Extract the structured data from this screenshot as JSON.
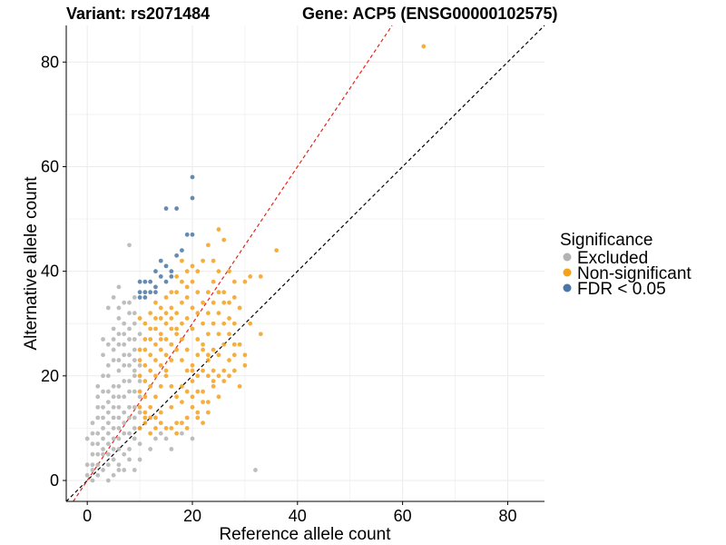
{
  "chart_data": {
    "type": "scatter",
    "title_left": "Variant: rs2071484",
    "title_right": "Gene: ACP5 (ENSG00000102575)",
    "xlabel": "Reference allele count",
    "ylabel": "Alternative allele count",
    "xlim": [
      -4,
      87
    ],
    "ylim": [
      -4,
      87
    ],
    "x_ticks": [
      0,
      20,
      40,
      60,
      80
    ],
    "y_ticks": [
      0,
      20,
      40,
      60,
      80
    ],
    "grid": true,
    "legend": {
      "title": "Significance",
      "position": "right",
      "entries": [
        {
          "key": "excluded",
          "label": "Excluded",
          "color": "#b3b3b3"
        },
        {
          "key": "nonsig",
          "label": "Non-significant",
          "color": "#f5a11c"
        },
        {
          "key": "fdr",
          "label": "FDR < 0.05",
          "color": "#4a77a6"
        }
      ]
    },
    "reference_lines": [
      {
        "name": "identity",
        "slope": 1.0,
        "intercept": 0,
        "color": "#000000",
        "style": "dashed"
      },
      {
        "name": "expected-ratio",
        "slope": 1.5,
        "intercept": 0,
        "color": "#e8231a",
        "style": "dashed"
      }
    ],
    "series": [
      {
        "name": "Excluded",
        "color": "#b3b3b3",
        "points": [
          [
            0,
            1
          ],
          [
            1,
            0
          ],
          [
            1,
            2
          ],
          [
            2,
            1
          ],
          [
            2,
            3
          ],
          [
            1,
            3
          ],
          [
            3,
            2
          ],
          [
            4,
            0
          ],
          [
            3,
            5
          ],
          [
            4,
            3
          ],
          [
            2,
            5
          ],
          [
            0,
            3
          ],
          [
            5,
            1
          ],
          [
            1,
            5
          ],
          [
            5,
            6
          ],
          [
            6,
            2
          ],
          [
            3,
            8
          ],
          [
            7,
            5
          ],
          [
            6,
            8
          ],
          [
            5,
            10
          ],
          [
            8,
            4
          ],
          [
            4,
            11
          ],
          [
            9,
            2
          ],
          [
            3,
            12
          ],
          [
            6,
            12
          ],
          [
            7,
            13
          ],
          [
            5,
            14
          ],
          [
            8,
            12
          ],
          [
            4,
            15
          ],
          [
            9,
            14
          ],
          [
            6,
            16
          ],
          [
            8,
            17
          ],
          [
            5,
            18
          ],
          [
            7,
            19
          ],
          [
            4,
            20
          ],
          [
            9,
            20
          ],
          [
            6,
            21
          ],
          [
            8,
            22
          ],
          [
            5,
            23
          ],
          [
            7,
            24
          ],
          [
            9,
            25
          ],
          [
            6,
            26
          ],
          [
            8,
            27
          ],
          [
            7,
            28
          ],
          [
            5,
            29
          ],
          [
            9,
            30
          ],
          [
            6,
            31
          ],
          [
            8,
            32
          ],
          [
            4,
            33
          ],
          [
            7,
            34
          ],
          [
            5,
            35
          ],
          [
            6,
            37
          ],
          [
            8,
            45
          ],
          [
            9,
            35
          ],
          [
            3,
            17
          ],
          [
            2,
            14
          ],
          [
            1,
            11
          ],
          [
            2,
            9
          ],
          [
            0,
            8
          ],
          [
            1,
            7
          ],
          [
            3,
            10
          ],
          [
            4,
            7
          ],
          [
            5,
            4
          ],
          [
            6,
            3
          ],
          [
            7,
            2
          ],
          [
            8,
            6
          ],
          [
            9,
            8
          ],
          [
            9,
            10
          ],
          [
            3,
            14
          ],
          [
            2,
            12
          ],
          [
            4,
            9
          ],
          [
            5,
            8
          ],
          [
            6,
            10
          ],
          [
            7,
            9
          ],
          [
            8,
            9
          ],
          [
            9,
            12
          ],
          [
            4,
            13
          ],
          [
            3,
            20
          ],
          [
            2,
            16
          ],
          [
            5,
            16
          ],
          [
            6,
            18
          ],
          [
            7,
            16
          ],
          [
            8,
            14
          ],
          [
            9,
            17
          ],
          [
            4,
            22
          ],
          [
            5,
            25
          ],
          [
            6,
            23
          ],
          [
            7,
            22
          ],
          [
            8,
            24
          ],
          [
            9,
            23
          ],
          [
            5,
            27
          ],
          [
            6,
            28
          ],
          [
            7,
            30
          ],
          [
            8,
            29
          ],
          [
            9,
            27
          ],
          [
            3,
            6
          ],
          [
            2,
            7
          ],
          [
            1,
            9
          ],
          [
            4,
            5
          ],
          [
            6,
            6
          ],
          [
            10,
            4
          ],
          [
            10,
            7
          ],
          [
            10,
            10
          ],
          [
            10,
            13
          ],
          [
            10,
            16
          ],
          [
            10,
            19
          ],
          [
            10,
            22
          ],
          [
            12,
            6
          ],
          [
            13,
            8
          ],
          [
            14,
            9
          ],
          [
            15,
            8
          ],
          [
            16,
            6
          ],
          [
            18,
            9
          ],
          [
            20,
            8
          ],
          [
            32,
            2
          ],
          [
            3,
            24
          ],
          [
            4,
            26
          ],
          [
            2,
            18
          ],
          [
            4,
            17
          ],
          [
            5,
            12
          ],
          [
            6,
            14
          ],
          [
            7,
            11
          ],
          [
            8,
            19
          ],
          [
            9,
            21
          ],
          [
            7,
            26
          ],
          [
            6,
            33
          ],
          [
            8,
            34
          ],
          [
            9,
            32
          ],
          [
            10,
            28
          ],
          [
            3,
            27
          ]
        ]
      },
      {
        "name": "Non-significant",
        "color": "#f5a11c",
        "points": [
          [
            10,
            10
          ],
          [
            11,
            11
          ],
          [
            12,
            9
          ],
          [
            13,
            12
          ],
          [
            14,
            13
          ],
          [
            15,
            10
          ],
          [
            16,
            14
          ],
          [
            17,
            11
          ],
          [
            18,
            15
          ],
          [
            19,
            12
          ],
          [
            20,
            16
          ],
          [
            21,
            13
          ],
          [
            22,
            17
          ],
          [
            23,
            15
          ],
          [
            24,
            18
          ],
          [
            25,
            16
          ],
          [
            26,
            19
          ],
          [
            27,
            20
          ],
          [
            28,
            21
          ],
          [
            29,
            18
          ],
          [
            30,
            22
          ],
          [
            10,
            14
          ],
          [
            11,
            16
          ],
          [
            12,
            18
          ],
          [
            13,
            20
          ],
          [
            14,
            22
          ],
          [
            15,
            24
          ],
          [
            16,
            26
          ],
          [
            17,
            28
          ],
          [
            18,
            30
          ],
          [
            19,
            31
          ],
          [
            20,
            29
          ],
          [
            21,
            27
          ],
          [
            22,
            25
          ],
          [
            23,
            23
          ],
          [
            24,
            21
          ],
          [
            10,
            20
          ],
          [
            11,
            22
          ],
          [
            12,
            24
          ],
          [
            13,
            26
          ],
          [
            14,
            28
          ],
          [
            15,
            30
          ],
          [
            16,
            31
          ],
          [
            17,
            25
          ],
          [
            18,
            23
          ],
          [
            19,
            21
          ],
          [
            20,
            19
          ],
          [
            21,
            17
          ],
          [
            22,
            15
          ],
          [
            23,
            13
          ],
          [
            10,
            25
          ],
          [
            11,
            27
          ],
          [
            12,
            29
          ],
          [
            13,
            31
          ],
          [
            14,
            27
          ],
          [
            15,
            20
          ],
          [
            16,
            18
          ],
          [
            17,
            16
          ],
          [
            18,
            18
          ],
          [
            19,
            17
          ],
          [
            20,
            22
          ],
          [
            21,
            24
          ],
          [
            22,
            26
          ],
          [
            23,
            28
          ],
          [
            24,
            30
          ],
          [
            25,
            32
          ],
          [
            26,
            34
          ],
          [
            27,
            31
          ],
          [
            28,
            35
          ],
          [
            29,
            33
          ],
          [
            30,
            38
          ],
          [
            31,
            39
          ],
          [
            33,
            39
          ],
          [
            36,
            44
          ],
          [
            33,
            28
          ],
          [
            28,
            38
          ],
          [
            25,
            40
          ],
          [
            24,
            42
          ],
          [
            26,
            46
          ],
          [
            25,
            48
          ],
          [
            23,
            45
          ],
          [
            22,
            42
          ],
          [
            21,
            40
          ],
          [
            20,
            41
          ],
          [
            19,
            37
          ],
          [
            18,
            38
          ],
          [
            17,
            39
          ],
          [
            16,
            36
          ],
          [
            15,
            35
          ],
          [
            14,
            33
          ],
          [
            13,
            34
          ],
          [
            12,
            32
          ],
          [
            11,
            30
          ],
          [
            10,
            31
          ],
          [
            64,
            83
          ],
          [
            27,
            23
          ],
          [
            26,
            21
          ],
          [
            25,
            20
          ],
          [
            24,
            19
          ],
          [
            23,
            24
          ],
          [
            22,
            21
          ],
          [
            21,
            20
          ],
          [
            20,
            21
          ],
          [
            19,
            25
          ],
          [
            18,
            27
          ],
          [
            17,
            29
          ],
          [
            16,
            23
          ],
          [
            15,
            21
          ],
          [
            14,
            18
          ],
          [
            13,
            16
          ],
          [
            12,
            14
          ],
          [
            11,
            13
          ],
          [
            10,
            17
          ],
          [
            11,
            19
          ],
          [
            12,
            21
          ],
          [
            13,
            23
          ],
          [
            14,
            25
          ],
          [
            15,
            27
          ],
          [
            16,
            29
          ],
          [
            17,
            32
          ],
          [
            18,
            34
          ],
          [
            19,
            35
          ],
          [
            20,
            33
          ],
          [
            21,
            32
          ],
          [
            22,
            34
          ],
          [
            23,
            36
          ],
          [
            24,
            38
          ],
          [
            26,
            36
          ],
          [
            27,
            40
          ],
          [
            28,
            26
          ],
          [
            29,
            26
          ],
          [
            20,
            14
          ],
          [
            21,
            12
          ],
          [
            22,
            11
          ],
          [
            19,
            10
          ],
          [
            18,
            11
          ],
          [
            17,
            9
          ],
          [
            16,
            10
          ],
          [
            14,
            11
          ],
          [
            13,
            10
          ],
          [
            12,
            12
          ],
          [
            11,
            12
          ],
          [
            25,
            24
          ],
          [
            26,
            26
          ],
          [
            27,
            28
          ],
          [
            28,
            30
          ],
          [
            22,
            30
          ],
          [
            23,
            32
          ],
          [
            21,
            36
          ],
          [
            20,
            38
          ],
          [
            19,
            40
          ],
          [
            18,
            42
          ],
          [
            17,
            36
          ],
          [
            16,
            33
          ],
          [
            15,
            32
          ],
          [
            14,
            31
          ],
          [
            13,
            29
          ],
          [
            12,
            27
          ],
          [
            11,
            25
          ],
          [
            10,
            23
          ],
          [
            25,
            36
          ],
          [
            24,
            34
          ],
          [
            23,
            20
          ],
          [
            24,
            25
          ],
          [
            25,
            28
          ],
          [
            26,
            30
          ],
          [
            27,
            34
          ],
          [
            28,
            24
          ],
          [
            30,
            24
          ],
          [
            31,
            30
          ]
        ]
      },
      {
        "name": "FDR < 0.05",
        "color": "#4a77a6",
        "points": [
          [
            20,
            58
          ],
          [
            20,
            54
          ],
          [
            15,
            52
          ],
          [
            17,
            52
          ],
          [
            20,
            47
          ],
          [
            19,
            47
          ],
          [
            18,
            44
          ],
          [
            14,
            42
          ],
          [
            15,
            41
          ],
          [
            17,
            43
          ],
          [
            16,
            40
          ],
          [
            14,
            39
          ],
          [
            13,
            40
          ],
          [
            11,
            38
          ],
          [
            10,
            38
          ],
          [
            10,
            36
          ],
          [
            11,
            35
          ],
          [
            12,
            36
          ],
          [
            10,
            35
          ],
          [
            13,
            37
          ],
          [
            15,
            38
          ],
          [
            12,
            38
          ],
          [
            11,
            36
          ],
          [
            13,
            36
          ],
          [
            16,
            39
          ]
        ]
      }
    ]
  }
}
